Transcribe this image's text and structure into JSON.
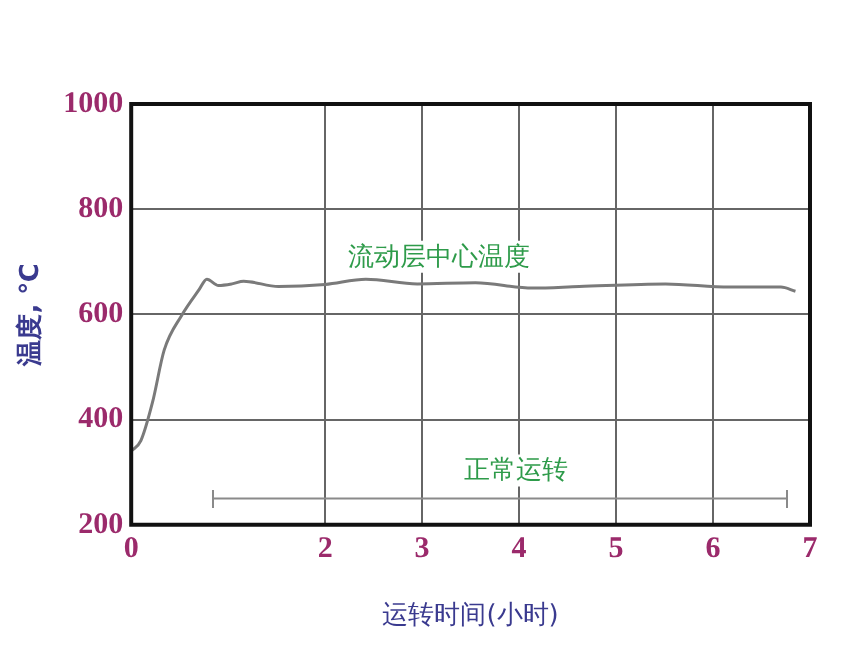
{
  "chart_data": {
    "type": "line",
    "xlabel": "运转时间(小时)",
    "ylabel": "温度, ℃",
    "xlim": [
      0,
      7
    ],
    "xticks": [
      0,
      2,
      3,
      4,
      5,
      6,
      7
    ],
    "ylim": [
      200,
      1000
    ],
    "yticks": [
      200,
      400,
      600,
      800,
      1000
    ],
    "grid": true,
    "legend": false,
    "marker": "none",
    "line_style": "solid",
    "series": [
      {
        "name": "流动层中心温度",
        "color": "#7a7a7a",
        "x": [
          0,
          0.1,
          0.22,
          0.34,
          0.52,
          0.7,
          0.78,
          0.9,
          1.04,
          1.16,
          1.52,
          2.0,
          2.42,
          2.95,
          3.55,
          4.14,
          4.62,
          5.51,
          6.17,
          6.7,
          6.85
        ],
        "values": [
          340,
          360,
          433,
          532,
          598,
          647,
          667,
          655,
          658,
          663,
          653,
          657,
          667,
          658,
          660,
          650,
          653,
          658,
          652,
          652,
          644
        ]
      },
      {
        "name": "正常运转",
        "color": "#8a8a8a",
        "x": [
          0.84,
          6.76
        ],
        "values": [
          250,
          250
        ]
      }
    ]
  }
}
